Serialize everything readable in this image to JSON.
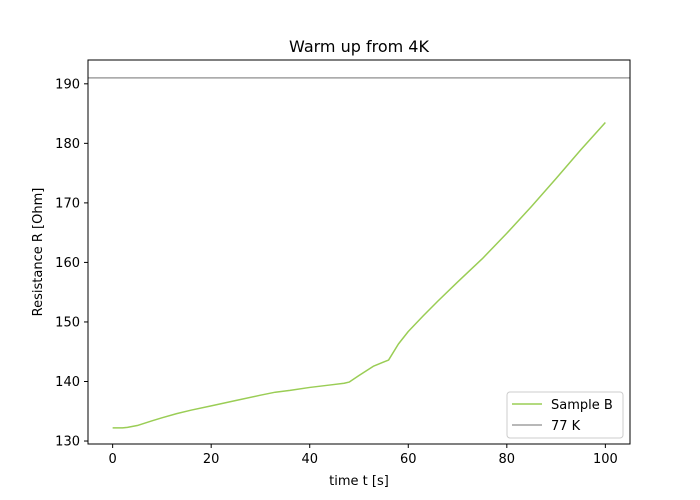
{
  "chart_data": {
    "type": "line",
    "title": "Warm up from 4K",
    "xlabel": "time t [s]",
    "ylabel": "Resistance R [Ohm]",
    "xlim": [
      -5,
      105
    ],
    "ylim": [
      129.5,
      194.0
    ],
    "xticks": [
      0,
      20,
      40,
      60,
      80,
      100
    ],
    "yticks": [
      130,
      140,
      150,
      160,
      170,
      180,
      190
    ],
    "grid": false,
    "legend_position": "lower-right",
    "series": [
      {
        "name": "Sample B",
        "color": "#9acd55",
        "x": [
          0,
          2,
          3,
          5,
          8,
          10,
          13,
          16,
          20,
          25,
          30,
          33,
          36,
          40,
          44,
          47,
          48,
          50,
          53,
          56,
          58,
          60,
          63,
          66,
          70,
          75,
          80,
          85,
          90,
          95,
          100
        ],
        "y": [
          132.2,
          132.2,
          132.3,
          132.6,
          133.4,
          133.9,
          134.6,
          135.2,
          135.9,
          136.8,
          137.7,
          138.2,
          138.5,
          139.0,
          139.4,
          139.7,
          139.9,
          141.0,
          142.6,
          143.6,
          146.3,
          148.4,
          151.0,
          153.5,
          156.7,
          160.6,
          164.9,
          169.4,
          174.1,
          178.9,
          183.5
        ]
      },
      {
        "name": "77 K",
        "color": "#a0a0a0",
        "type": "hline",
        "y": 191.0
      }
    ]
  }
}
